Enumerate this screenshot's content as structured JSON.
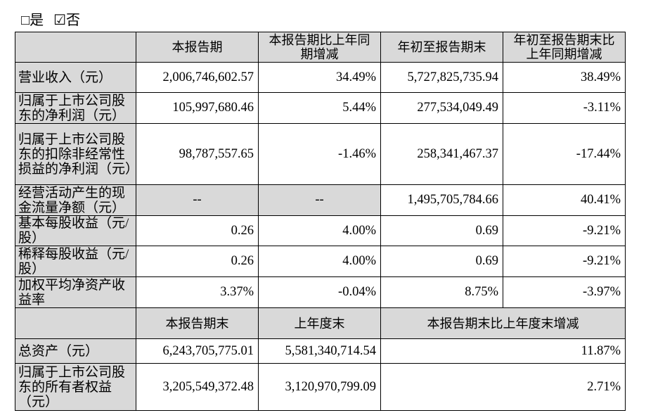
{
  "checkbox": {
    "yes": "□是",
    "no": "☑否"
  },
  "table": {
    "header": [
      "本报告期",
      "本报告期比上年同期增减",
      "年初至报告期末",
      "年初至报告期末比上年同期增减"
    ],
    "rows": [
      [
        "营业收入（元）",
        "2,006,746,602.57",
        "34.49%",
        "5,727,825,735.94",
        "38.49%"
      ],
      [
        "归属于上市公司股东的净利润（元）",
        "105,997,680.46",
        "5.44%",
        "277,534,049.49",
        "-3.11%"
      ],
      [
        "归属于上市公司股东的扣除非经常性损益的净利润（元）",
        "98,787,557.65",
        "-1.46%",
        "258,341,467.37",
        "-17.44%"
      ],
      [
        "经营活动产生的现金流量净额（元）",
        "--",
        "--",
        "1,495,705,784.66",
        "40.41%"
      ],
      [
        "基本每股收益（元/股）",
        "0.26",
        "4.00%",
        "0.69",
        "-9.21%"
      ],
      [
        "稀释每股收益（元/股）",
        "0.26",
        "4.00%",
        "0.69",
        "-9.21%"
      ],
      [
        "加权平均净资产收益率",
        "3.37%",
        "-0.04%",
        "8.75%",
        "-3.97%"
      ]
    ],
    "header2": [
      "本报告期末",
      "上年度末",
      "本报告期末比上年度末增减"
    ],
    "rows2": [
      [
        "总资产（元）",
        "6,243,705,775.01",
        "5,581,340,714.54",
        "11.87%"
      ],
      [
        "归属于上市公司股东的所有者权益（元）",
        "3,205,549,372.48",
        "3,120,970,799.09",
        "2.71%"
      ]
    ]
  }
}
